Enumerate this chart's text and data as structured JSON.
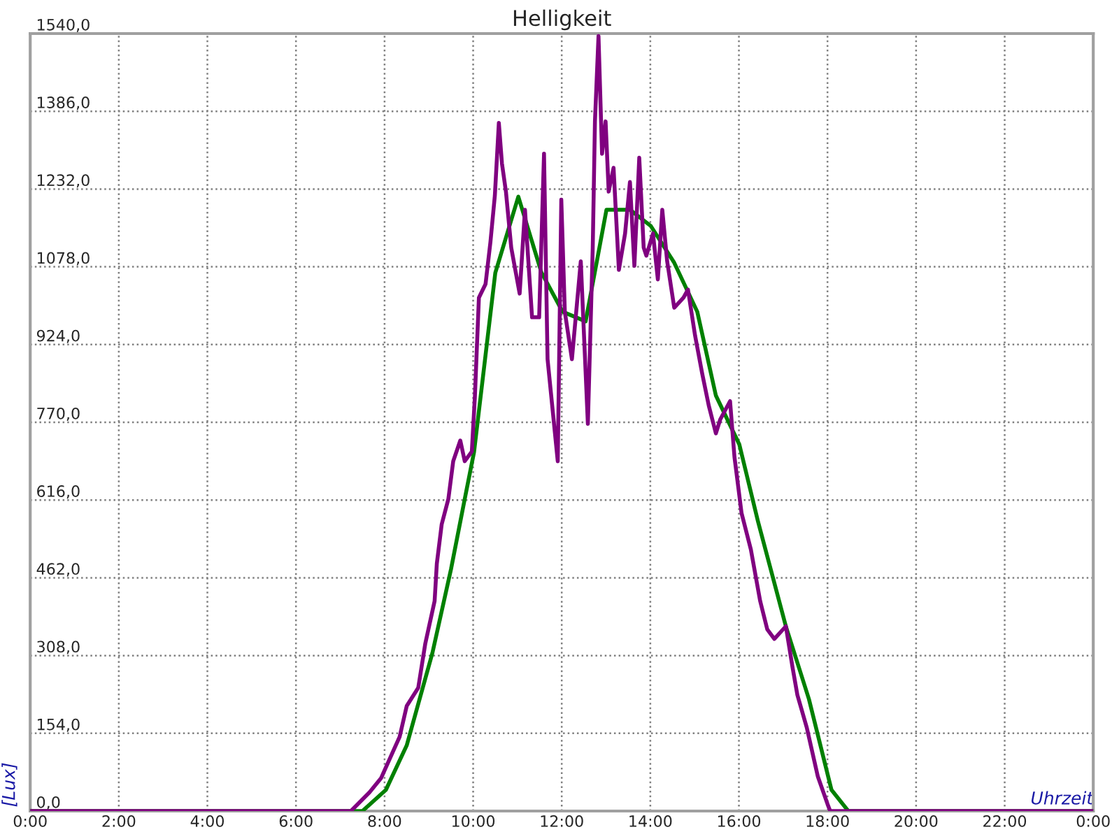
{
  "chart_data": {
    "type": "line",
    "title": "Helligkeit",
    "xlabel": "Uhrzeit",
    "ylabel": "[Lux]",
    "xlim": [
      0,
      24
    ],
    "ylim": [
      0,
      1540
    ],
    "xticks": [
      {
        "value": 0,
        "label": "0:00"
      },
      {
        "value": 2,
        "label": "2:00"
      },
      {
        "value": 4,
        "label": "4:00"
      },
      {
        "value": 6,
        "label": "6:00"
      },
      {
        "value": 8,
        "label": "8:00"
      },
      {
        "value": 10,
        "label": "10:00"
      },
      {
        "value": 12,
        "label": "12:00"
      },
      {
        "value": 14,
        "label": "14:00"
      },
      {
        "value": 16,
        "label": "16:00"
      },
      {
        "value": 18,
        "label": "18:00"
      },
      {
        "value": 20,
        "label": "20:00"
      },
      {
        "value": 22,
        "label": "22:00"
      },
      {
        "value": 24,
        "label": "0:00"
      }
    ],
    "yticks": [
      {
        "value": 0,
        "label": "0,0"
      },
      {
        "value": 154,
        "label": "154,0"
      },
      {
        "value": 308,
        "label": "308,0"
      },
      {
        "value": 462,
        "label": "462,0"
      },
      {
        "value": 616,
        "label": "616,0"
      },
      {
        "value": 770,
        "label": "770,0"
      },
      {
        "value": 924,
        "label": "924,0"
      },
      {
        "value": 1078,
        "label": "1078,0"
      },
      {
        "value": 1232,
        "label": "1232,0"
      },
      {
        "value": 1386,
        "label": "1386,0"
      },
      {
        "value": 1540,
        "label": "1540,0"
      }
    ],
    "grid": true,
    "legend": false,
    "marker": "none",
    "line_style": "solid",
    "series": [
      {
        "color": "#008000",
        "x": [
          0,
          7.5,
          8.03,
          8.5,
          9.08,
          9.5,
          9.81,
          10.02,
          10.5,
          11.02,
          11.54,
          12.02,
          12.54,
          13.01,
          13.54,
          14.01,
          14.54,
          15.06,
          15.48,
          16.01,
          16.43,
          17.06,
          17.58,
          18.09,
          18.47,
          24
        ],
        "values": [
          0,
          0,
          42,
          130,
          313,
          479,
          618,
          711,
          1066,
          1217,
          1067,
          989,
          970,
          1191,
          1191,
          1159,
          1086,
          989,
          823,
          726,
          574,
          366,
          222,
          42,
          0,
          0
        ]
      },
      {
        "color": "#800080",
        "x": [
          0,
          7.24,
          7.66,
          7.92,
          8.18,
          8.34,
          8.5,
          8.76,
          8.92,
          9.13,
          9.18,
          9.29,
          9.44,
          9.55,
          9.71,
          9.81,
          9.97,
          10.04,
          10.13,
          10.28,
          10.39,
          10.49,
          10.58,
          10.65,
          10.74,
          10.86,
          11.05,
          11.17,
          11.33,
          11.49,
          11.6,
          11.68,
          11.91,
          11.99,
          12.07,
          12.23,
          12.43,
          12.59,
          12.7,
          12.75,
          12.83,
          12.91,
          12.99,
          13.06,
          13.17,
          13.29,
          13.43,
          13.54,
          13.64,
          13.75,
          13.85,
          13.91,
          14.06,
          14.17,
          14.27,
          14.38,
          14.54,
          14.75,
          14.85,
          15.01,
          15.17,
          15.32,
          15.48,
          15.58,
          15.8,
          15.9,
          16.06,
          16.27,
          16.48,
          16.64,
          16.8,
          17.06,
          17.21,
          17.32,
          17.53,
          17.78,
          18.0,
          18.06,
          24
        ],
        "values": [
          0,
          0,
          37,
          65,
          116,
          147,
          208,
          244,
          332,
          416,
          490,
          568,
          618,
          693,
          734,
          693,
          712,
          822,
          1017,
          1044,
          1127,
          1219,
          1363,
          1283,
          1227,
          1116,
          1025,
          1191,
          978,
          978,
          1302,
          895,
          693,
          1211,
          989,
          895,
          1089,
          767,
          1116,
          1366,
          1535,
          1302,
          1366,
          1227,
          1274,
          1072,
          1144,
          1246,
          1080,
          1294,
          1116,
          1100,
          1144,
          1053,
          1191,
          1089,
          997,
          1017,
          1033,
          942,
          867,
          803,
          748,
          776,
          812,
          701,
          590,
          518,
          416,
          360,
          341,
          366,
          285,
          230,
          166,
          69,
          14,
          0,
          0
        ]
      }
    ]
  }
}
